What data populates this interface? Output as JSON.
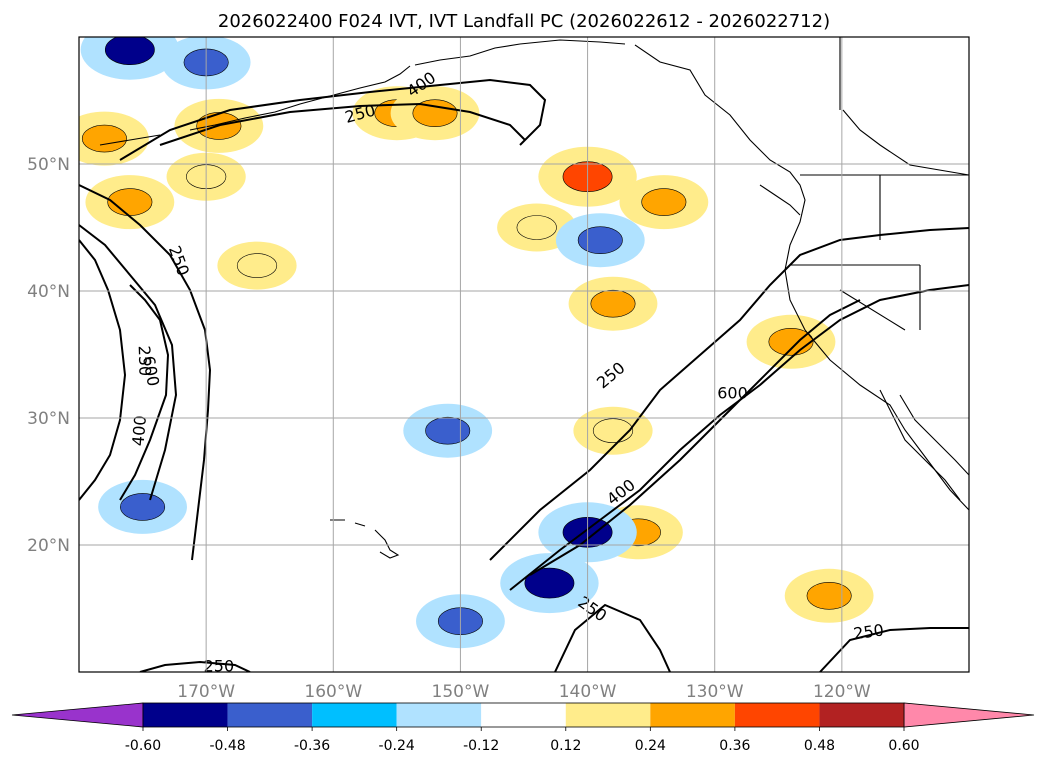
{
  "chart_data": {
    "type": "map",
    "title": "2026022400 F024 IVT, IVT Landfall PC (2026022612 - 2026022712)",
    "lon_range": [
      -180,
      -110
    ],
    "lat_range": [
      10,
      60
    ],
    "x_ticks": [
      {
        "lon": -170,
        "label": "170°W"
      },
      {
        "lon": -160,
        "label": "160°W"
      },
      {
        "lon": -150,
        "label": "150°W"
      },
      {
        "lon": -140,
        "label": "140°W"
      },
      {
        "lon": -130,
        "label": "130°W"
      },
      {
        "lon": -120,
        "label": "120°W"
      }
    ],
    "y_ticks": [
      {
        "lat": 20,
        "label": "20°N"
      },
      {
        "lat": 30,
        "label": "30°N"
      },
      {
        "lat": 40,
        "label": "40°N"
      },
      {
        "lat": 50,
        "label": "50°N"
      }
    ],
    "colorbar": {
      "extend": "both",
      "levels": [
        "-0.60",
        "-0.48",
        "-0.36",
        "-0.24",
        "-0.12",
        "0.12",
        "0.24",
        "0.36",
        "0.48",
        "0.60"
      ],
      "colors": [
        "#9933cc",
        "#00008b",
        "#3a5fcd",
        "#00bfff",
        "#b0e2ff",
        "#ffffff",
        "#ffec8b",
        "#ffa500",
        "#ff4500",
        "#b22222",
        "#ff88aa"
      ]
    },
    "ivt_contour_labels": [
      {
        "text": "250",
        "lon": -157.9,
        "lat": 54.0,
        "angle": -15
      },
      {
        "text": "400",
        "lon": -153.1,
        "lat": 56.3,
        "angle": -35
      },
      {
        "text": "250",
        "lon": -172.1,
        "lat": 42.4,
        "angle": 70
      },
      {
        "text": "250",
        "lon": -174.8,
        "lat": 34.5,
        "angle": 88
      },
      {
        "text": "600",
        "lon": -174.3,
        "lat": 33.7,
        "angle": 80
      },
      {
        "text": "400",
        "lon": -175.3,
        "lat": 29.0,
        "angle": -85
      },
      {
        "text": "250",
        "lon": -138.2,
        "lat": 33.4,
        "angle": -40
      },
      {
        "text": "600",
        "lon": -128.6,
        "lat": 32.0,
        "angle": 0
      },
      {
        "text": "400",
        "lon": -137.4,
        "lat": 24.2,
        "angle": -38
      },
      {
        "text": "250",
        "lon": -139.6,
        "lat": 15.0,
        "angle": 35
      },
      {
        "text": "250",
        "lon": -117.9,
        "lat": 13.2,
        "angle": -8
      },
      {
        "text": "250",
        "lon": -169.0,
        "lat": 10.5,
        "angle": 0
      }
    ],
    "pc_regions_positive": [
      {
        "lon": -178,
        "lat": 52,
        "value": 0.36
      },
      {
        "lon": -169,
        "lat": 53,
        "value": 0.36
      },
      {
        "lon": -176,
        "lat": 47,
        "value": 0.36
      },
      {
        "lon": -170,
        "lat": 49,
        "value": 0.24
      },
      {
        "lon": -155,
        "lat": 54,
        "value": 0.36
      },
      {
        "lon": -152,
        "lat": 54,
        "value": 0.36
      },
      {
        "lon": -140,
        "lat": 49,
        "value": 0.48
      },
      {
        "lon": -134,
        "lat": 47,
        "value": 0.36
      },
      {
        "lon": -144,
        "lat": 45,
        "value": 0.24
      },
      {
        "lon": -166,
        "lat": 42,
        "value": 0.24
      },
      {
        "lon": -138,
        "lat": 39,
        "value": 0.36
      },
      {
        "lon": -124,
        "lat": 36,
        "value": 0.36
      },
      {
        "lon": -138,
        "lat": 29,
        "value": 0.24
      },
      {
        "lon": -136,
        "lat": 21,
        "value": 0.36
      },
      {
        "lon": -121,
        "lat": 16,
        "value": 0.36
      }
    ],
    "pc_regions_negative": [
      {
        "lon": -176,
        "lat": 59,
        "value": -0.48
      },
      {
        "lon": -170,
        "lat": 58,
        "value": -0.36
      },
      {
        "lon": -139,
        "lat": 44,
        "value": -0.36
      },
      {
        "lon": -151,
        "lat": 29,
        "value": -0.36
      },
      {
        "lon": -175,
        "lat": 23,
        "value": -0.36
      },
      {
        "lon": -143,
        "lat": 17,
        "value": -0.48
      },
      {
        "lon": -140,
        "lat": 21,
        "value": -0.48
      },
      {
        "lon": -150,
        "lat": 14,
        "value": -0.36
      }
    ]
  }
}
